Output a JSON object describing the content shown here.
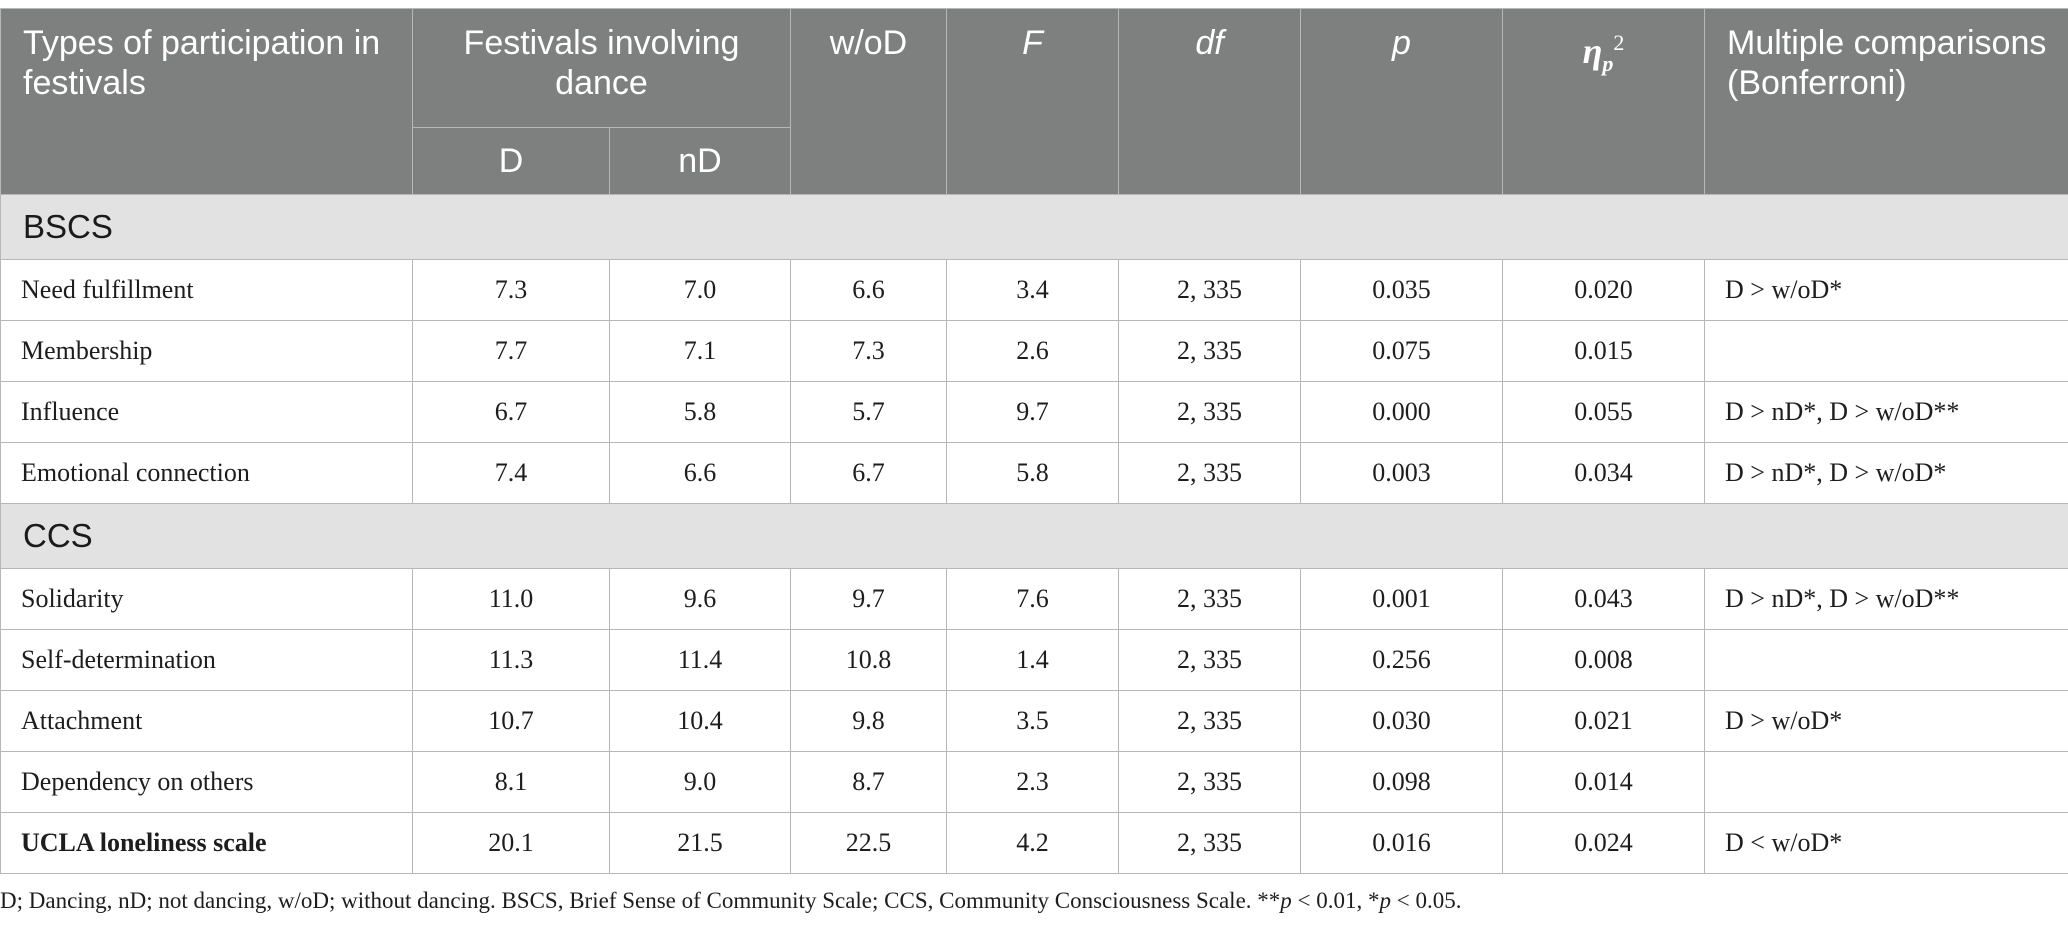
{
  "header": {
    "col_type": "Types of participation in festivals",
    "col_fest": "Festivals involving dance",
    "col_d": "D",
    "col_nd": "nD",
    "col_wod": "w/oD",
    "col_f": "F",
    "col_df": "df",
    "col_p": "p",
    "col_eta_symbol": "η",
    "col_eta_sub": "p",
    "col_eta_sup": "2",
    "col_mc": "Multiple comparisons (Bonferroni)"
  },
  "sections": {
    "bscs": {
      "title": "BSCS",
      "rows": [
        {
          "label": "Need fulfillment",
          "d": "7.3",
          "nd": "7.0",
          "wod": "6.6",
          "f": "3.4",
          "df": "2, 335",
          "p": "0.035",
          "eta": "0.020",
          "mc": "D > w/oD*"
        },
        {
          "label": "Membership",
          "d": "7.7",
          "nd": "7.1",
          "wod": "7.3",
          "f": "2.6",
          "df": "2, 335",
          "p": "0.075",
          "eta": "0.015",
          "mc": ""
        },
        {
          "label": "Influence",
          "d": "6.7",
          "nd": "5.8",
          "wod": "5.7",
          "f": "9.7",
          "df": "2, 335",
          "p": "0.000",
          "eta": "0.055",
          "mc": "D > nD*, D > w/oD**"
        },
        {
          "label": "Emotional connection",
          "d": "7.4",
          "nd": "6.6",
          "wod": "6.7",
          "f": "5.8",
          "df": "2, 335",
          "p": "0.003",
          "eta": "0.034",
          "mc": "D > nD*, D > w/oD*"
        }
      ]
    },
    "ccs": {
      "title": "CCS",
      "rows": [
        {
          "label": "Solidarity",
          "d": "11.0",
          "nd": "9.6",
          "wod": "9.7",
          "f": "7.6",
          "df": "2, 335",
          "p": "0.001",
          "eta": "0.043",
          "mc": "D > nD*, D > w/oD**"
        },
        {
          "label": "Self-determination",
          "d": "11.3",
          "nd": "11.4",
          "wod": "10.8",
          "f": "1.4",
          "df": "2, 335",
          "p": "0.256",
          "eta": "0.008",
          "mc": ""
        },
        {
          "label": "Attachment",
          "d": "10.7",
          "nd": "10.4",
          "wod": "9.8",
          "f": "3.5",
          "df": "2, 335",
          "p": "0.030",
          "eta": "0.021",
          "mc": "D > w/oD*"
        },
        {
          "label": "Dependency on others",
          "d": "8.1",
          "nd": "9.0",
          "wod": "8.7",
          "f": "2.3",
          "df": "2, 335",
          "p": "0.098",
          "eta": "0.014",
          "mc": ""
        },
        {
          "label": "UCLA loneliness scale",
          "d": "20.1",
          "nd": "21.5",
          "wod": "22.5",
          "f": "4.2",
          "df": "2, 335",
          "p": "0.016",
          "eta": "0.024",
          "mc": "D < w/oD*"
        }
      ]
    }
  },
  "footnote": {
    "text_a": "D; Dancing, nD; not dancing, w/oD; without dancing. BSCS, Brief Sense of Community Scale; CCS, Community Consciousness Scale. **",
    "p1": "p",
    "text_b": " < 0.01, *",
    "p2": "p",
    "text_c": " < 0.05."
  },
  "colors": {
    "header_bg": "#7e7f7f",
    "section_bg": "#e3e2e3",
    "border": "#b7b7b7"
  }
}
